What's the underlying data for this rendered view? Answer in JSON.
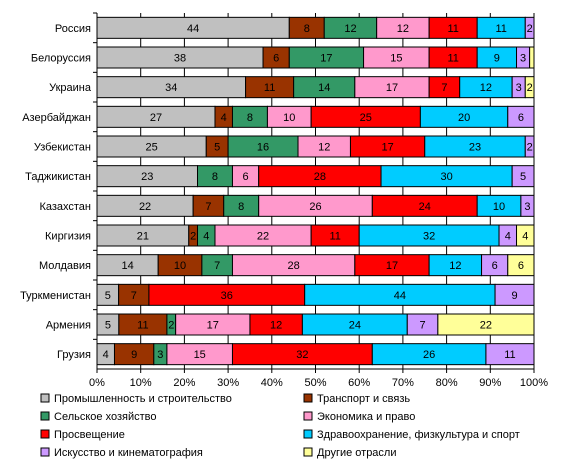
{
  "chart_data": {
    "type": "bar",
    "orientation": "horizontal",
    "stacked": "percent",
    "categories": [
      "Россия",
      "Белоруссия",
      "Украина",
      "Азербайджан",
      "Узбекистан",
      "Таджикистан",
      "Казахстан",
      "Киргизия",
      "Молдавия",
      "Туркменистан",
      "Армения",
      "Грузия"
    ],
    "series": [
      {
        "name": "Промышленность и строительство",
        "color": "#c0c0c0",
        "values": [
          44,
          38,
          34,
          27,
          25,
          23,
          22,
          21,
          14,
          5,
          5,
          4
        ]
      },
      {
        "name": "Транспорт и связь",
        "color": "#993300",
        "values": [
          8,
          6,
          11,
          4,
          5,
          0,
          7,
          2,
          10,
          7,
          11,
          9
        ]
      },
      {
        "name": "Сельское хозяйство",
        "color": "#339966",
        "values": [
          12,
          17,
          14,
          8,
          16,
          8,
          8,
          4,
          7,
          0,
          2,
          3
        ]
      },
      {
        "name": "Экономика и право",
        "color": "#ff99cc",
        "values": [
          12,
          15,
          17,
          10,
          12,
          6,
          26,
          22,
          28,
          0,
          17,
          15
        ]
      },
      {
        "name": "Просвещение",
        "color": "#ff0000",
        "values": [
          11,
          11,
          7,
          25,
          17,
          28,
          24,
          11,
          17,
          36,
          12,
          32
        ]
      },
      {
        "name": "Здравоохранение, физкультура и спорт",
        "color": "#00ccff",
        "values": [
          11,
          9,
          12,
          20,
          23,
          30,
          10,
          32,
          12,
          44,
          24,
          26
        ]
      },
      {
        "name": "Искусство и кинематография",
        "color": "#cc99ff",
        "values": [
          2,
          3,
          3,
          6,
          2,
          5,
          3,
          4,
          6,
          9,
          7,
          11
        ]
      },
      {
        "name": "Другие отрасли",
        "color": "#ffff99",
        "values": [
          0,
          1,
          2,
          0,
          0,
          0,
          0,
          4,
          6,
          0,
          22,
          0
        ]
      }
    ],
    "labels": [
      [
        "44",
        "8",
        "12",
        "12",
        "11",
        "11",
        "2",
        ""
      ],
      [
        "38",
        "6",
        "17",
        "15",
        "11",
        "9",
        "3",
        ""
      ],
      [
        "34",
        "11",
        "14",
        "17",
        "7",
        "12",
        "3",
        "2"
      ],
      [
        "27",
        "4",
        "8",
        "10",
        "25",
        "20",
        "6",
        ""
      ],
      [
        "25",
        "5",
        "16",
        "12",
        "17",
        "23",
        "2",
        ""
      ],
      [
        "23",
        "",
        "8",
        "6",
        "28",
        "30",
        "5",
        ""
      ],
      [
        "22",
        "7",
        "8",
        "26",
        "24",
        "10",
        "3",
        ""
      ],
      [
        "21",
        "2",
        "4",
        "22",
        "11",
        "32",
        "4",
        "4"
      ],
      [
        "14",
        "10",
        "7",
        "28",
        "17",
        "12",
        "6",
        "6"
      ],
      [
        "5",
        "7",
        "",
        "",
        "36",
        "44",
        "9",
        ""
      ],
      [
        "5",
        "11",
        "2",
        "17",
        "12",
        "24",
        "7",
        "22"
      ],
      [
        "4",
        "9",
        "3",
        "15",
        "32",
        "26",
        "11",
        ""
      ]
    ],
    "x_ticks": [
      "0%",
      "10%",
      "20%",
      "30%",
      "40%",
      "50%",
      "60%",
      "70%",
      "80%",
      "90%",
      "100%"
    ],
    "xlim": [
      0,
      100
    ],
    "grid": true,
    "legend_position": "bottom",
    "title": "",
    "xlabel": "",
    "ylabel": ""
  }
}
